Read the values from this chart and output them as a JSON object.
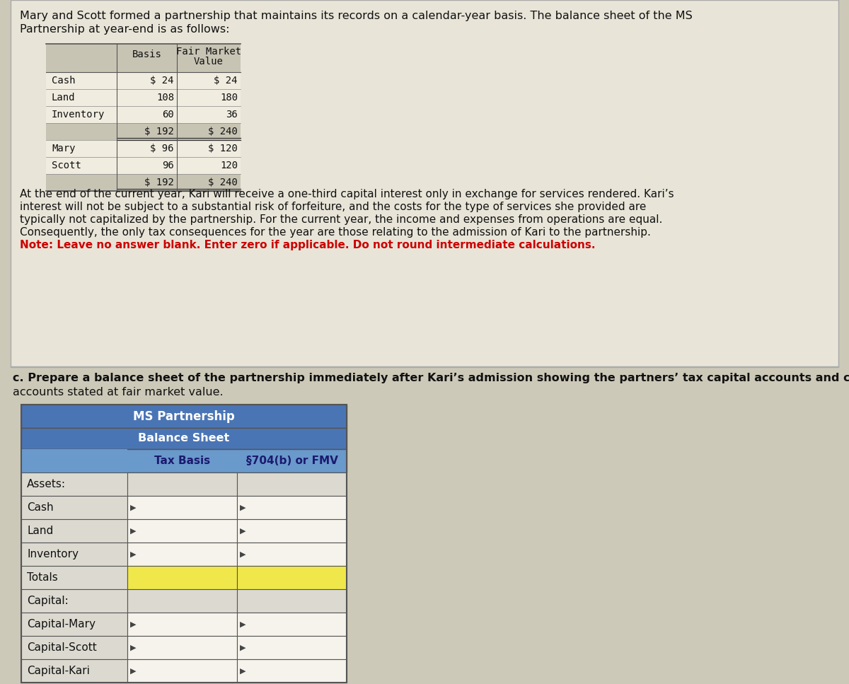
{
  "bg_color": "#ccc9b8",
  "top_panel_color": "#e8e5d8",
  "top_text_lines": [
    "Mary and Scott formed a partnership that maintains its records on a calendar-year basis. The balance sheet of the MS",
    "Partnership at year-end is as follows:"
  ],
  "first_table": {
    "col1_header": "Basis",
    "col2_header_line1": "Fair Market",
    "col2_header_line2": "Value",
    "rows": [
      [
        "Cash",
        "$ 24",
        "$ 24"
      ],
      [
        "Land",
        "108",
        "180"
      ],
      [
        "Inventory",
        "60",
        "36"
      ],
      [
        "",
        "$ 192",
        "$ 240"
      ],
      [
        "Mary",
        "$ 96",
        "$ 120"
      ],
      [
        "Scott",
        "96",
        "120"
      ],
      [
        "",
        "$ 192",
        "$ 240"
      ]
    ],
    "total_rows": [
      3,
      6
    ],
    "header_bg": "#c8c4b4",
    "cell_bg": "#f0ece0",
    "font": "Courier New"
  },
  "middle_text": [
    "At the end of the current year, Kari will receive a one-third capital interest only in exchange for services rendered. Kari’s",
    "interest will not be subject to a substantial risk of forfeiture, and the costs for the type of services she provided are",
    "typically not capitalized by the partnership. For the current year, the income and expenses from operations are equal.",
    "Consequently, the only tax consequences for the year are those relating to the admission of Kari to the partnership.",
    "Note: Leave no answer blank. Enter zero if applicable. Do not round intermediate calculations."
  ],
  "bottom_label_line1": "c. Prepare a balance sheet of the partnership immediately after Kari’s admission showing the partners’ tax capital accounts and cap",
  "bottom_label_line2": "accounts stated at fair market value.",
  "second_table": {
    "title1": "MS Partnership",
    "title2": "Balance Sheet",
    "col_header1": "Tax Basis",
    "col_header2": "§704(b) or FMV",
    "rows": [
      [
        "Assets:",
        false,
        false
      ],
      [
        "Cash",
        true,
        true
      ],
      [
        "Land",
        true,
        true
      ],
      [
        "Inventory",
        true,
        true
      ],
      [
        "Totals",
        false,
        false
      ],
      [
        "Capital:",
        false,
        false
      ],
      [
        "Capital-Mary",
        true,
        true
      ],
      [
        "Capital-Scott",
        true,
        true
      ],
      [
        "Capital-Kari",
        true,
        true
      ]
    ],
    "totals_row_idx": 4,
    "header_bg": "#4a75b5",
    "col_header_bg": "#6a99cc",
    "totals_bg": "#f0e84a",
    "label_bg": "#dcdad0",
    "input_bg": "#f5f3eb",
    "col0_bg": "#dcdad0",
    "border_color": "#555555"
  }
}
